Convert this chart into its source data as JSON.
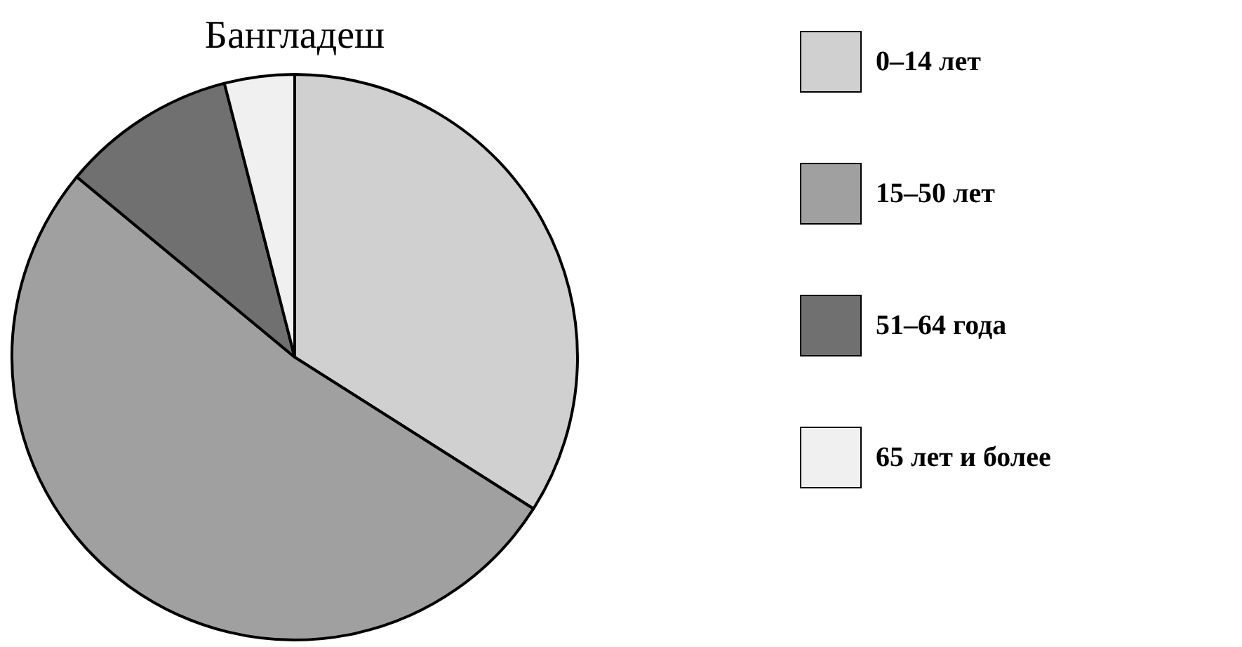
{
  "chart_data": {
    "type": "pie",
    "title": "Бангладеш",
    "categories": [
      "0–14 лет",
      "15–50 лет",
      "51–64 года",
      "65 лет и более"
    ],
    "values": [
      34,
      52,
      10,
      4
    ],
    "colors": [
      "#d0d0d0",
      "#a0a0a0",
      "#707070",
      "#f0f0f0"
    ],
    "legend": "right"
  }
}
